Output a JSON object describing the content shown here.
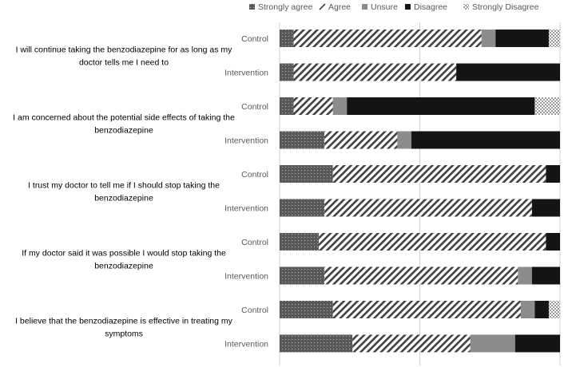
{
  "chart_data": {
    "type": "bar",
    "stacked": true,
    "orientation": "horizontal",
    "percent_stacked": true,
    "xlim": [
      0,
      100
    ],
    "legend_position": "top-right",
    "legend": [
      {
        "name": "Strongly agree",
        "pattern": "dots"
      },
      {
        "name": "Agree",
        "pattern": "diagonal"
      },
      {
        "name": "Unsure",
        "pattern": "solid-gray"
      },
      {
        "name": "Disagree",
        "pattern": "solid-black"
      },
      {
        "name": "Strongly Disagree",
        "pattern": "checker"
      }
    ],
    "questions": [
      {
        "label_lines": [
          "I will continue taking the benzodiazepine for as long as my",
          "doctor tells me I need to"
        ],
        "groups": [
          {
            "name": "Control",
            "values": [
              5,
              67,
              5,
              19,
              4
            ]
          },
          {
            "name": "Intervention",
            "values": [
              5,
              58,
              0,
              37,
              0
            ]
          }
        ]
      },
      {
        "label_lines": [
          "I am concerned about the potential side effects of taking the",
          "benzodiazepine"
        ],
        "groups": [
          {
            "name": "Control",
            "values": [
              5,
              14,
              5,
              67,
              9
            ]
          },
          {
            "name": "Intervention",
            "values": [
              16,
              26,
              5,
              53,
              0
            ]
          }
        ]
      },
      {
        "label_lines": [
          "I trust my doctor to tell me if I should stop taking the",
          "benzodiazepine"
        ],
        "groups": [
          {
            "name": "Control",
            "values": [
              19,
              76,
              0,
              5,
              0
            ]
          },
          {
            "name": "Intervention",
            "values": [
              16,
              74,
              0,
              10,
              0
            ]
          }
        ]
      },
      {
        "label_lines": [
          "If my doctor said it was possible I would stop taking the",
          "benzodiazepine"
        ],
        "groups": [
          {
            "name": "Control",
            "values": [
              14,
              81,
              0,
              5,
              0
            ]
          },
          {
            "name": "Intervention",
            "values": [
              16,
              69,
              5,
              10,
              0
            ]
          }
        ]
      },
      {
        "label_lines": [
          "I believe that the benzodiazepine is effective in treating my",
          "symptoms"
        ],
        "groups": [
          {
            "name": "Control",
            "values": [
              19,
              67,
              5,
              5,
              4
            ]
          },
          {
            "name": "Intervention",
            "values": [
              26,
              42,
              16,
              16,
              0
            ]
          }
        ]
      }
    ]
  }
}
